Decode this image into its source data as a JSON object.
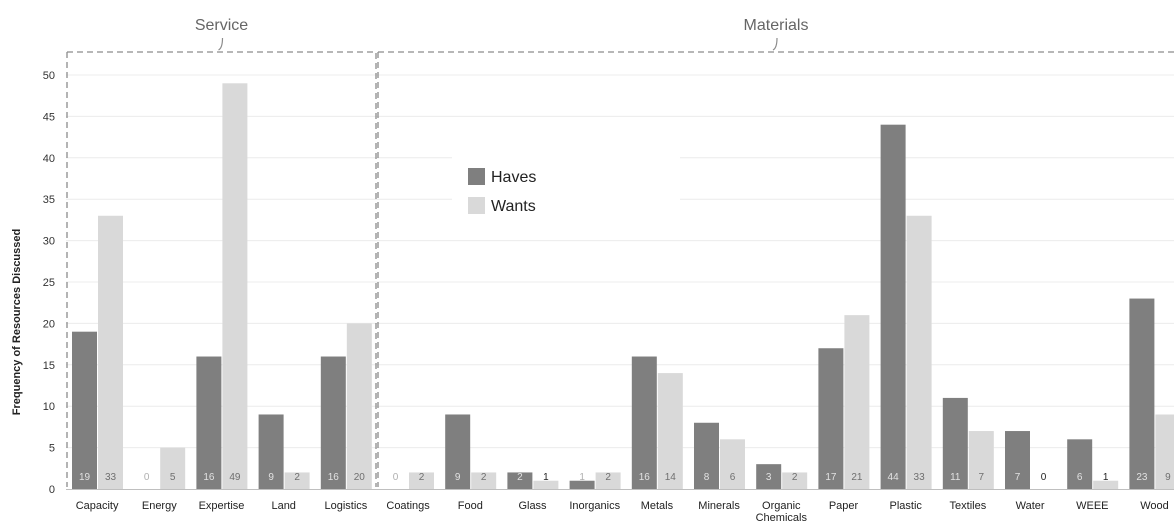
{
  "chart_data": {
    "type": "bar",
    "title": "",
    "xlabel": "",
    "ylabel": "Frequency of Resources Discussed",
    "ylim": [
      0,
      50
    ],
    "yticks": [
      0,
      5,
      10,
      15,
      20,
      25,
      30,
      35,
      40,
      45,
      50
    ],
    "grid": true,
    "legend_position": "center-top",
    "categories": [
      "Capacity",
      "Energy",
      "Expertise",
      "Land",
      "Logistics",
      "Coatings",
      "Food",
      "Glass",
      "Inorganics",
      "Metals",
      "Minerals",
      "Organic Chemicals",
      "Paper",
      "Plastic",
      "Textiles",
      "Water",
      "WEEE",
      "Wood"
    ],
    "series": [
      {
        "name": "Haves",
        "color": "#7f7f7f",
        "values": [
          19,
          0,
          16,
          9,
          16,
          0,
          9,
          2,
          1,
          16,
          8,
          3,
          17,
          44,
          11,
          7,
          6,
          23
        ]
      },
      {
        "name": "Wants",
        "color": "#d9d9d9",
        "values": [
          33,
          5,
          49,
          2,
          20,
          2,
          2,
          1,
          2,
          14,
          6,
          2,
          21,
          33,
          7,
          0,
          1,
          9
        ]
      }
    ],
    "groups": [
      {
        "label": "Service",
        "categories": [
          "Capacity",
          "Energy",
          "Expertise",
          "Land",
          "Logistics"
        ]
      },
      {
        "label": "Materials",
        "categories": [
          "Coatings",
          "Food",
          "Glass",
          "Inorganics",
          "Metals",
          "Minerals",
          "Organic Chemicals",
          "Paper",
          "Plastic",
          "Textiles",
          "Water",
          "WEEE",
          "Wood"
        ]
      }
    ]
  }
}
